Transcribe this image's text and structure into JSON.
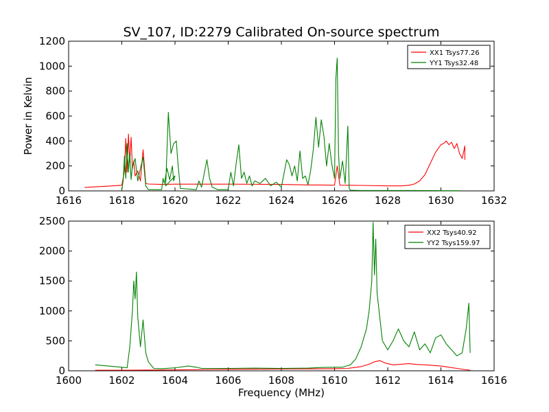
{
  "figure": {
    "title": "SV_107, ID:2279 Calibrated On-source spectrum",
    "xlabel": "Frequency (MHz)",
    "ylabel_top": "Power in Kelvin"
  },
  "colors": {
    "xx": "#ff0000",
    "yy": "#008000"
  },
  "chart_data": [
    {
      "type": "line",
      "panel": "top",
      "xlabel": "",
      "ylabel": "Power in Kelvin",
      "xlim": [
        1616,
        1632
      ],
      "ylim": [
        0,
        1200
      ],
      "xticks": [
        "1616",
        "1618",
        "1620",
        "1622",
        "1624",
        "1626",
        "1628",
        "1630",
        "1632"
      ],
      "yticks": [
        "0",
        "200",
        "400",
        "600",
        "800",
        "1000",
        "1200"
      ],
      "legend_position": "top-right",
      "series": [
        {
          "name": "XX1 Tsys77.26",
          "color": "#ff0000",
          "points": [
            [
              1616.6,
              28
            ],
            [
              1617.5,
              38
            ],
            [
              1618.0,
              45
            ],
            [
              1618.1,
              160
            ],
            [
              1618.15,
              420
            ],
            [
              1618.2,
              150
            ],
            [
              1618.25,
              455
            ],
            [
              1618.3,
              230
            ],
            [
              1618.35,
              430
            ],
            [
              1618.4,
              180
            ],
            [
              1618.45,
              240
            ],
            [
              1618.5,
              120
            ],
            [
              1618.6,
              160
            ],
            [
              1618.7,
              80
            ],
            [
              1618.8,
              330
            ],
            [
              1618.9,
              60
            ],
            [
              1619.0,
              55
            ],
            [
              1619.5,
              52
            ],
            [
              1620.0,
              54
            ],
            [
              1621.0,
              54
            ],
            [
              1622.0,
              54
            ],
            [
              1623.0,
              53
            ],
            [
              1624.0,
              52
            ],
            [
              1624.5,
              50
            ],
            [
              1625.0,
              48
            ],
            [
              1625.5,
              47
            ],
            [
              1626.0,
              46
            ],
            [
              1626.1,
              200
            ],
            [
              1626.2,
              46
            ],
            [
              1627.0,
              44
            ],
            [
              1628.0,
              40
            ],
            [
              1628.5,
              40
            ],
            [
              1628.8,
              45
            ],
            [
              1629.0,
              55
            ],
            [
              1629.2,
              80
            ],
            [
              1629.4,
              130
            ],
            [
              1629.6,
              220
            ],
            [
              1629.8,
              310
            ],
            [
              1630.0,
              370
            ],
            [
              1630.1,
              380
            ],
            [
              1630.2,
              400
            ],
            [
              1630.3,
              370
            ],
            [
              1630.4,
              390
            ],
            [
              1630.5,
              340
            ],
            [
              1630.6,
              380
            ],
            [
              1630.7,
              300
            ],
            [
              1630.8,
              260
            ],
            [
              1630.9,
              360
            ],
            [
              1630.9,
              250
            ]
          ]
        },
        {
          "name": "YY1 Tsys32.48",
          "color": "#008000",
          "points": [
            [
              1618.0,
              5
            ],
            [
              1618.05,
              80
            ],
            [
              1618.1,
              280
            ],
            [
              1618.15,
              100
            ],
            [
              1618.2,
              380
            ],
            [
              1618.25,
              150
            ],
            [
              1618.3,
              300
            ],
            [
              1618.35,
              90
            ],
            [
              1618.4,
              200
            ],
            [
              1618.5,
              260
            ],
            [
              1618.6,
              80
            ],
            [
              1618.7,
              180
            ],
            [
              1618.8,
              270
            ],
            [
              1618.9,
              40
            ],
            [
              1619.0,
              10
            ],
            [
              1619.5,
              10
            ],
            [
              1619.55,
              100
            ],
            [
              1619.6,
              60
            ],
            [
              1619.7,
              180
            ],
            [
              1619.8,
              90
            ],
            [
              1619.9,
              200
            ],
            [
              1619.95,
              80
            ],
            [
              1620.0,
              120
            ],
            [
              1619.65,
              40
            ],
            [
              1619.75,
              630
            ],
            [
              1619.85,
              300
            ],
            [
              1619.95,
              380
            ],
            [
              1620.05,
              400
            ],
            [
              1620.1,
              250
            ],
            [
              1620.2,
              20
            ],
            [
              1620.8,
              10
            ],
            [
              1620.9,
              80
            ],
            [
              1621.0,
              30
            ],
            [
              1621.2,
              250
            ],
            [
              1621.3,
              100
            ],
            [
              1621.4,
              30
            ],
            [
              1621.6,
              10
            ],
            [
              1622.0,
              10
            ],
            [
              1622.1,
              150
            ],
            [
              1622.2,
              40
            ],
            [
              1622.3,
              220
            ],
            [
              1622.4,
              370
            ],
            [
              1622.5,
              100
            ],
            [
              1622.6,
              150
            ],
            [
              1622.7,
              60
            ],
            [
              1622.8,
              120
            ],
            [
              1622.9,
              40
            ],
            [
              1623.0,
              80
            ],
            [
              1623.2,
              60
            ],
            [
              1623.4,
              100
            ],
            [
              1623.6,
              40
            ],
            [
              1623.8,
              70
            ],
            [
              1624.0,
              30
            ],
            [
              1624.2,
              250
            ],
            [
              1624.3,
              210
            ],
            [
              1624.4,
              120
            ],
            [
              1624.5,
              200
            ],
            [
              1624.6,
              80
            ],
            [
              1624.7,
              320
            ],
            [
              1624.8,
              100
            ],
            [
              1624.9,
              120
            ],
            [
              1625.0,
              50
            ],
            [
              1625.1,
              160
            ],
            [
              1625.2,
              330
            ],
            [
              1625.3,
              590
            ],
            [
              1625.4,
              350
            ],
            [
              1625.5,
              570
            ],
            [
              1625.6,
              440
            ],
            [
              1625.7,
              200
            ],
            [
              1625.8,
              380
            ],
            [
              1625.9,
              210
            ],
            [
              1626.0,
              100
            ],
            [
              1626.05,
              900
            ],
            [
              1626.1,
              1065
            ],
            [
              1626.15,
              300
            ],
            [
              1626.2,
              100
            ],
            [
              1626.3,
              240
            ],
            [
              1626.4,
              60
            ],
            [
              1626.5,
              520
            ],
            [
              1626.55,
              20
            ],
            [
              1626.6,
              5
            ],
            [
              1627.0,
              3
            ],
            [
              1628.0,
              3
            ],
            [
              1629.0,
              3
            ],
            [
              1630.0,
              2
            ],
            [
              1630.7,
              2
            ]
          ]
        }
      ]
    },
    {
      "type": "line",
      "panel": "bottom",
      "xlabel": "Frequency (MHz)",
      "ylabel": "",
      "xlim": [
        1600,
        1616
      ],
      "ylim": [
        0,
        2500
      ],
      "xticks": [
        "1600",
        "1602",
        "1604",
        "1606",
        "1608",
        "1610",
        "1612",
        "1614",
        "1616"
      ],
      "yticks": [
        "0",
        "500",
        "1000",
        "1500",
        "2000",
        "2500"
      ],
      "legend_position": "top-right",
      "series": [
        {
          "name": "XX2 Tsys40.92",
          "color": "#ff0000",
          "points": [
            [
              1601.0,
              10
            ],
            [
              1602.0,
              10
            ],
            [
              1603.0,
              12
            ],
            [
              1604.0,
              15
            ],
            [
              1605.0,
              20
            ],
            [
              1606.0,
              25
            ],
            [
              1607.0,
              28
            ],
            [
              1608.0,
              30
            ],
            [
              1609.0,
              32
            ],
            [
              1610.0,
              35
            ],
            [
              1610.5,
              40
            ],
            [
              1611.0,
              70
            ],
            [
              1611.3,
              110
            ],
            [
              1611.5,
              150
            ],
            [
              1611.7,
              170
            ],
            [
              1611.9,
              130
            ],
            [
              1612.2,
              100
            ],
            [
              1612.5,
              110
            ],
            [
              1612.8,
              120
            ],
            [
              1613.1,
              105
            ],
            [
              1613.4,
              100
            ],
            [
              1613.7,
              90
            ],
            [
              1614.0,
              80
            ],
            [
              1614.3,
              60
            ],
            [
              1614.6,
              40
            ],
            [
              1614.9,
              20
            ],
            [
              1615.1,
              10
            ]
          ]
        },
        {
          "name": "YY2 Tsys159.97",
          "color": "#008000",
          "points": [
            [
              1601.0,
              100
            ],
            [
              1601.5,
              80
            ],
            [
              1602.0,
              60
            ],
            [
              1602.2,
              50
            ],
            [
              1602.3,
              400
            ],
            [
              1602.4,
              1000
            ],
            [
              1602.45,
              1500
            ],
            [
              1602.5,
              1200
            ],
            [
              1602.55,
              1650
            ],
            [
              1602.6,
              900
            ],
            [
              1602.7,
              400
            ],
            [
              1602.8,
              850
            ],
            [
              1602.9,
              300
            ],
            [
              1603.0,
              150
            ],
            [
              1603.2,
              40
            ],
            [
              1603.5,
              35
            ],
            [
              1604.0,
              50
            ],
            [
              1604.5,
              80
            ],
            [
              1604.8,
              60
            ],
            [
              1605.0,
              40
            ],
            [
              1606.0,
              40
            ],
            [
              1607.0,
              45
            ],
            [
              1608.0,
              40
            ],
            [
              1609.0,
              45
            ],
            [
              1609.5,
              55
            ],
            [
              1610.0,
              60
            ],
            [
              1610.3,
              60
            ],
            [
              1610.6,
              100
            ],
            [
              1610.8,
              200
            ],
            [
              1611.0,
              400
            ],
            [
              1611.2,
              700
            ],
            [
              1611.3,
              1000
            ],
            [
              1611.4,
              1500
            ],
            [
              1611.45,
              2480
            ],
            [
              1611.5,
              1600
            ],
            [
              1611.55,
              2200
            ],
            [
              1611.6,
              1300
            ],
            [
              1611.7,
              900
            ],
            [
              1611.8,
              500
            ],
            [
              1612.0,
              350
            ],
            [
              1612.2,
              500
            ],
            [
              1612.4,
              700
            ],
            [
              1612.6,
              500
            ],
            [
              1612.8,
              400
            ],
            [
              1613.0,
              650
            ],
            [
              1613.2,
              350
            ],
            [
              1613.4,
              450
            ],
            [
              1613.6,
              300
            ],
            [
              1613.8,
              550
            ],
            [
              1614.0,
              600
            ],
            [
              1614.2,
              450
            ],
            [
              1614.4,
              350
            ],
            [
              1614.6,
              250
            ],
            [
              1614.8,
              300
            ],
            [
              1614.95,
              700
            ],
            [
              1615.05,
              1130
            ],
            [
              1615.1,
              300
            ]
          ]
        }
      ]
    }
  ]
}
